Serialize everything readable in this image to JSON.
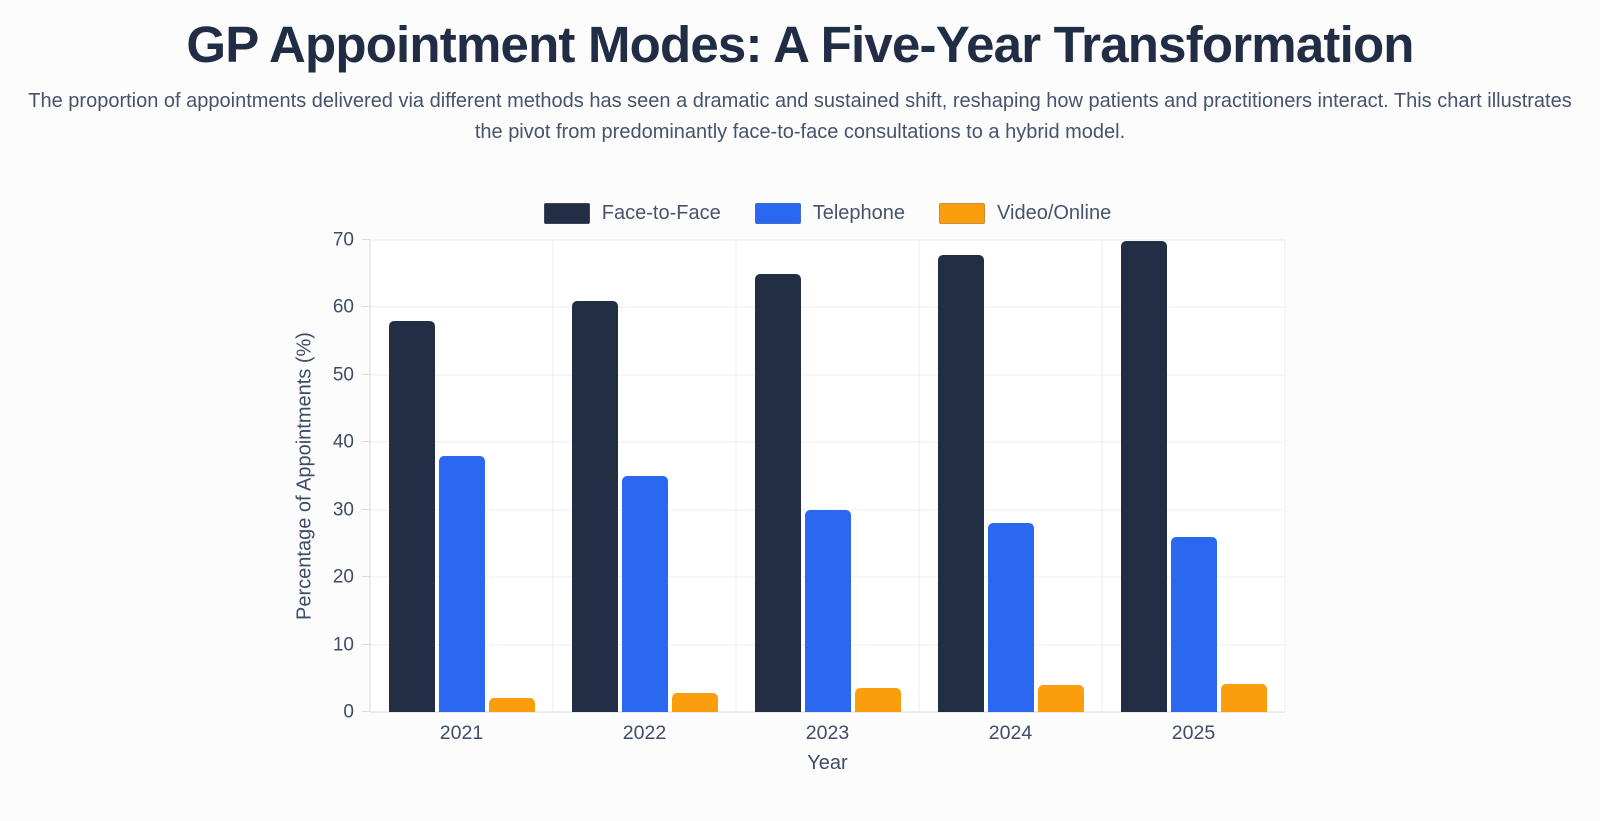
{
  "page": {
    "title": "GP Appointment Modes: A Five-Year Transformation",
    "subtitle": "The proportion of appointments delivered via different methods has seen a dramatic and sustained shift, reshaping how patients and practitioners interact. This chart illustrates the pivot from predominantly face-to-face consultations to a hybrid model."
  },
  "chart_data": {
    "type": "bar",
    "grouped": true,
    "categories": [
      "2021",
      "2022",
      "2023",
      "2024",
      "2025"
    ],
    "series": [
      {
        "name": "Face-to-Face",
        "color": "#222e44",
        "values": [
          58,
          61,
          65,
          67.8,
          69.8
        ]
      },
      {
        "name": "Telephone",
        "color": "#2b68f0",
        "values": [
          38,
          35,
          30,
          28,
          26
        ]
      },
      {
        "name": "Video/Online",
        "color": "#fb9e0d",
        "values": [
          2.1,
          2.8,
          3.5,
          4,
          4.2
        ]
      }
    ],
    "xlabel": "Year",
    "ylabel": "Percentage of Appointments (%)",
    "ylim": [
      0,
      70
    ],
    "yticks": [
      0,
      10,
      20,
      30,
      40,
      50,
      60,
      70
    ],
    "grid": true,
    "legend_position": "top",
    "colors": {
      "background": "#fcfcfd",
      "plot_background": "#ffffff",
      "gridline": "#ededf2",
      "axis_line": "#d8dbe2",
      "title_text": "#212d44",
      "subtitle_text": "#46536b",
      "axis_text": "#3e4c66"
    }
  }
}
